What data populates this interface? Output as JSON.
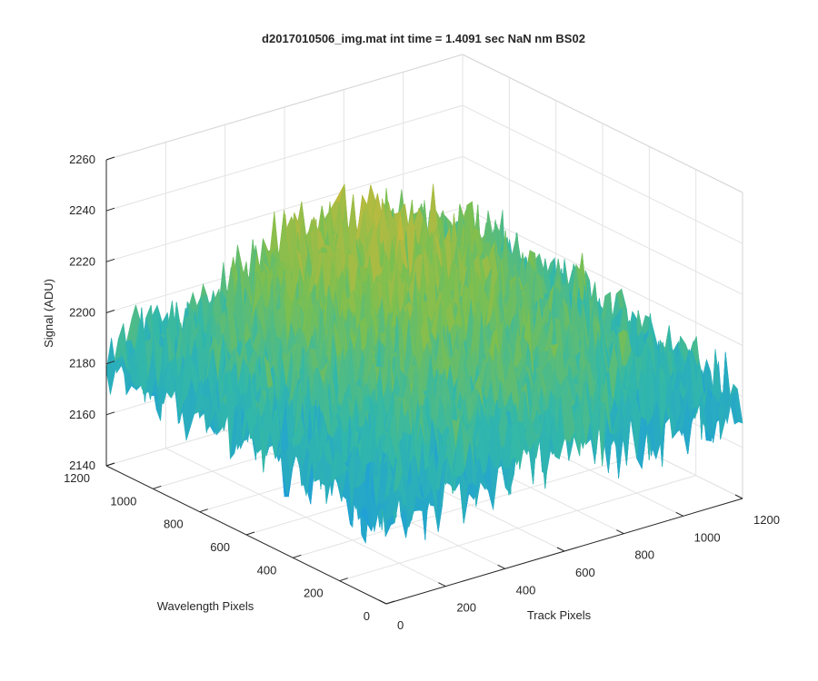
{
  "chart_data": {
    "type": "surface",
    "title": "d2017010506_img.mat int time = 1.4091 sec  NaN nm BS02",
    "xlabel": "Track Pixels",
    "ylabel": "Wavelength Pixels",
    "zlabel": "Signal (ADU)",
    "xlim": [
      0,
      1200
    ],
    "ylim": [
      0,
      1200
    ],
    "zlim": [
      2140,
      2260
    ],
    "x_ticks": [
      "0",
      "200",
      "400",
      "600",
      "800",
      "1000",
      "1200"
    ],
    "y_ticks": [
      "0",
      "200",
      "400",
      "600",
      "800",
      "1000",
      "1200"
    ],
    "z_ticks": [
      "2140",
      "2160",
      "2180",
      "2200",
      "2220",
      "2240",
      "2260"
    ],
    "grid": true,
    "colormap": "parula",
    "colors": [
      "#0072bd",
      "#1fa0d8",
      "#33b8a8",
      "#7cbf50",
      "#c8b93b",
      "#edc340"
    ],
    "surface_profile": {
      "x": [
        0,
        200,
        400,
        600,
        800,
        1000,
        1200
      ],
      "y": [
        0,
        200,
        400,
        600,
        800,
        1000,
        1200
      ],
      "z_mean": [
        [
          2172,
          2178,
          2182,
          2184,
          2183,
          2180,
          2175
        ],
        [
          2176,
          2183,
          2188,
          2190,
          2189,
          2185,
          2179
        ],
        [
          2178,
          2186,
          2192,
          2196,
          2195,
          2190,
          2182
        ],
        [
          2180,
          2188,
          2196,
          2202,
          2200,
          2194,
          2185
        ],
        [
          2181,
          2190,
          2199,
          2206,
          2205,
          2198,
          2187
        ],
        [
          2180,
          2189,
          2198,
          2208,
          2210,
          2202,
          2188
        ],
        [
          2178,
          2186,
          2194,
          2204,
          2206,
          2198,
          2184
        ]
      ],
      "noise_amplitude": 18
    }
  }
}
